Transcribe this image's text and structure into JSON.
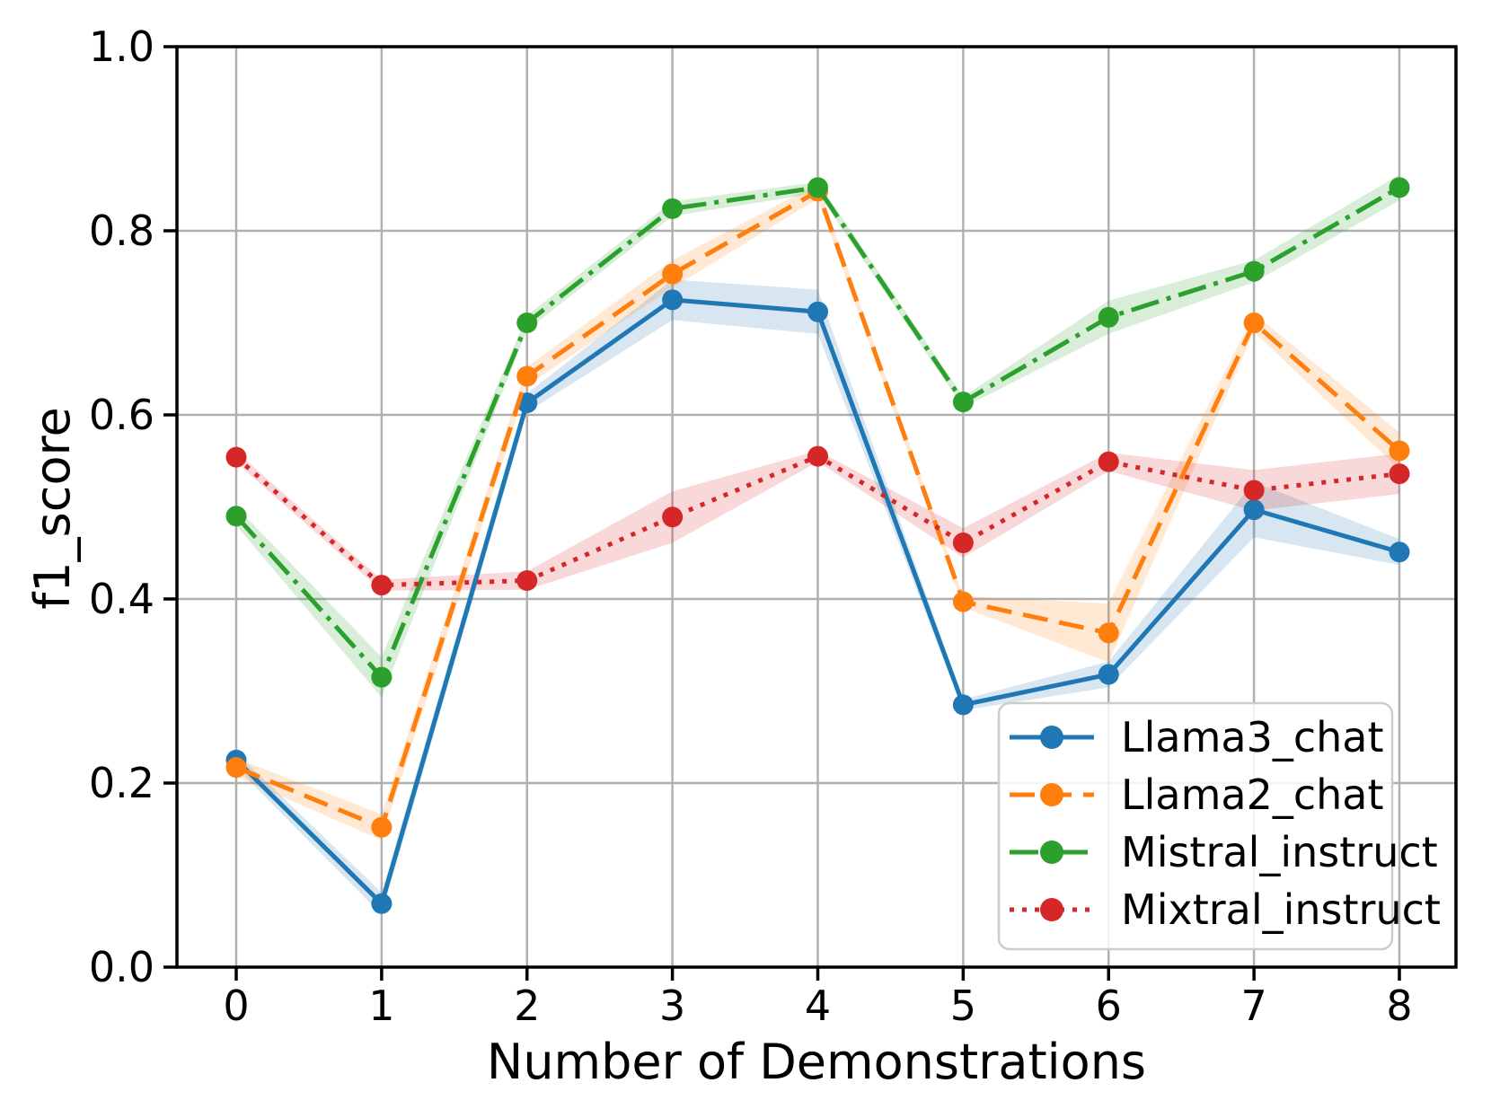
{
  "chart_data": {
    "type": "line",
    "title": "",
    "xlabel": "Number of Demonstrations",
    "ylabel": "f1_score",
    "x": [
      0,
      1,
      2,
      3,
      4,
      5,
      6,
      7,
      8
    ],
    "xtick_labels": [
      "0",
      "1",
      "2",
      "3",
      "4",
      "5",
      "6",
      "7",
      "8"
    ],
    "yticks": [
      0.0,
      0.2,
      0.4,
      0.6,
      0.8,
      1.0
    ],
    "ytick_labels": [
      "0.0",
      "0.2",
      "0.4",
      "0.6",
      "0.8",
      "1.0"
    ],
    "ylim": [
      0.0,
      1.0
    ],
    "grid": true,
    "legend_position": "lower right",
    "series": [
      {
        "name": "Llama3_chat",
        "color": "#1f77b4",
        "linestyle": "solid",
        "marker": "circle",
        "values": [
          0.225,
          0.069,
          0.613,
          0.725,
          0.712,
          0.285,
          0.318,
          0.497,
          0.451
        ],
        "band": [
          0.008,
          0.012,
          0.01,
          0.022,
          0.024,
          0.006,
          0.014,
          0.03,
          0.014
        ]
      },
      {
        "name": "Llama2_chat",
        "color": "#ff7f0e",
        "linestyle": "dashed",
        "marker": "circle",
        "values": [
          0.217,
          0.152,
          0.642,
          0.753,
          0.843,
          0.397,
          0.363,
          0.7,
          0.561
        ],
        "band": [
          0.01,
          0.014,
          0.01,
          0.015,
          0.008,
          0.006,
          0.032,
          0.01,
          0.02
        ]
      },
      {
        "name": "Mistral_instruct",
        "color": "#2ca02c",
        "linestyle": "dashdot",
        "marker": "circle",
        "values": [
          0.49,
          0.315,
          0.7,
          0.824,
          0.847,
          0.614,
          0.706,
          0.756,
          0.847
        ],
        "band": [
          0.01,
          0.022,
          0.008,
          0.008,
          0.006,
          0.006,
          0.018,
          0.012,
          0.014
        ]
      },
      {
        "name": "Mixtral_instruct",
        "color": "#d62728",
        "linestyle": "dotted",
        "marker": "circle",
        "values": [
          0.554,
          0.415,
          0.42,
          0.489,
          0.555,
          0.461,
          0.549,
          0.518,
          0.536
        ],
        "band": [
          0.006,
          0.006,
          0.01,
          0.028,
          0.006,
          0.016,
          0.01,
          0.022,
          0.022
        ]
      }
    ]
  },
  "colors": {
    "background": "#ffffff",
    "grid": "#b0b0b0",
    "axis": "#000000",
    "tick_label": "#000000",
    "legend_border": "#cccccc",
    "legend_background": "#ffffff"
  }
}
